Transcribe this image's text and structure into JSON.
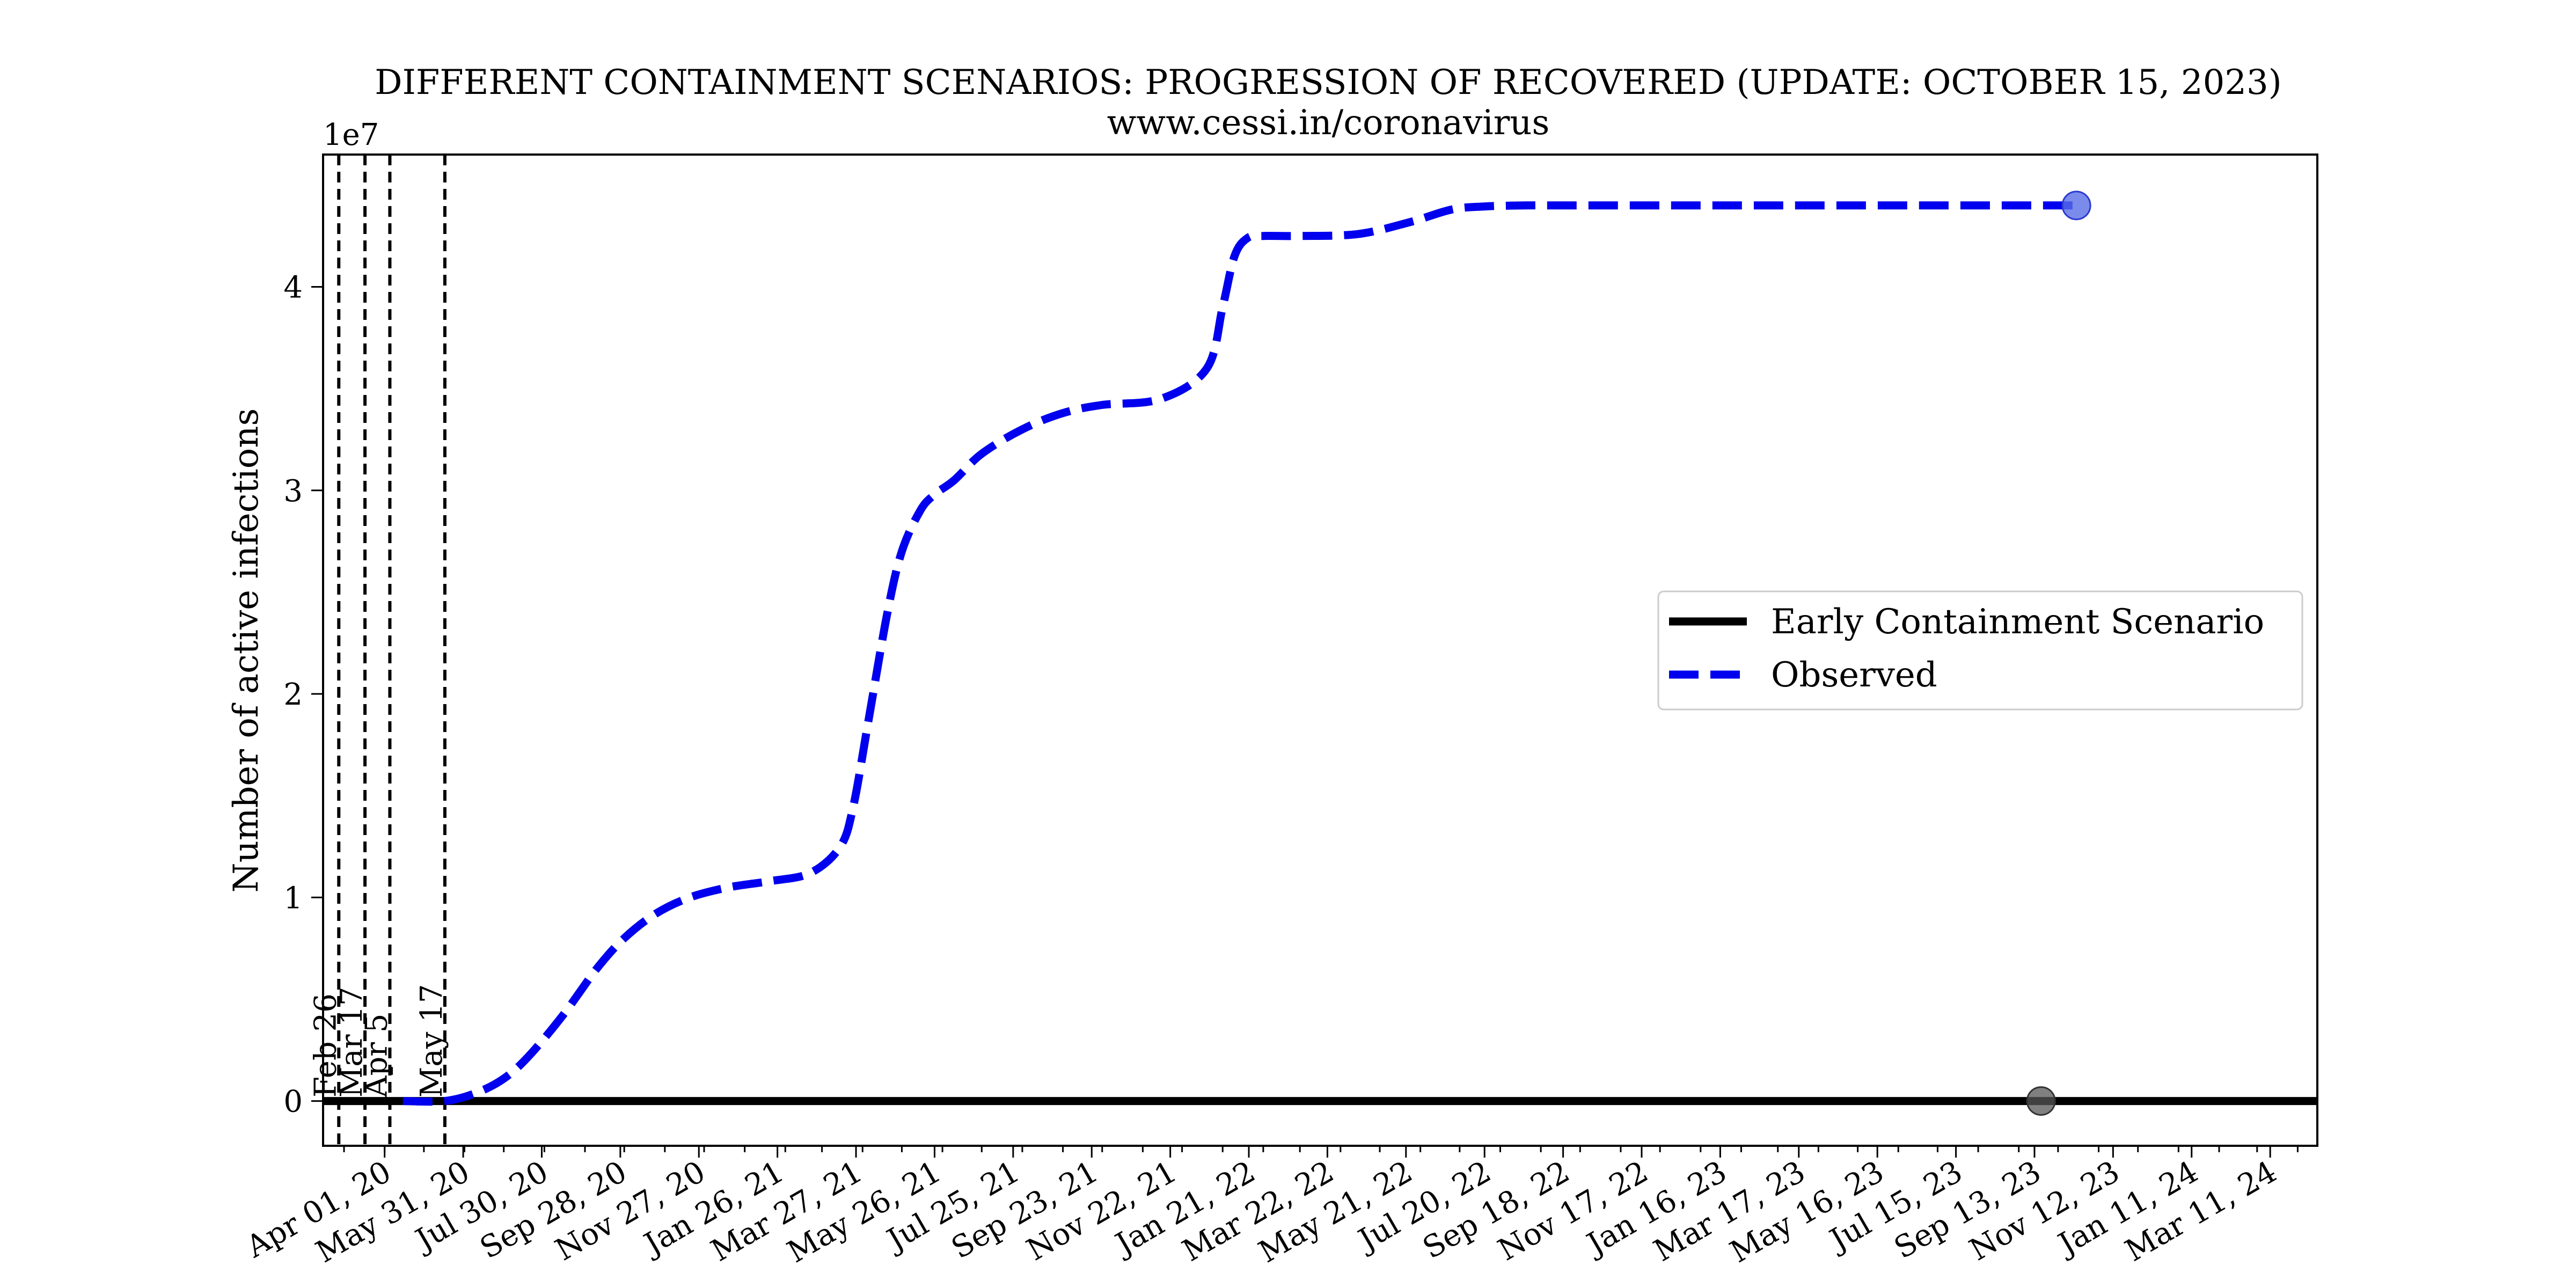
{
  "chart_data": {
    "type": "line",
    "title": "DIFFERENT CONTAINMENT SCENARIOS: PROGRESSION OF RECOVERED (UPDATE: OCTOBER 15, 2023)",
    "subtitle": "www.cessi.in/coronavirus",
    "ylabel": "Number of active infections",
    "xlabel": "",
    "y_scale_note": "1e7",
    "x_start": "2020-02-14",
    "xlim": [
      "2020-02-14",
      "2024-04-16"
    ],
    "ylim": [
      -2200000,
      46500000
    ],
    "y_ticks": [
      0,
      10000000,
      20000000,
      30000000,
      40000000
    ],
    "y_tick_labels": [
      "0",
      "1",
      "2",
      "3",
      "4"
    ],
    "x_ticks": [
      "2020-04-01",
      "2020-05-31",
      "2020-07-30",
      "2020-09-28",
      "2020-11-27",
      "2021-01-26",
      "2021-03-27",
      "2021-05-26",
      "2021-07-25",
      "2021-09-23",
      "2021-11-22",
      "2022-01-21",
      "2022-03-22",
      "2022-05-21",
      "2022-07-20",
      "2022-09-18",
      "2022-11-17",
      "2023-01-16",
      "2023-03-17",
      "2023-05-16",
      "2023-07-15",
      "2023-09-13",
      "2023-11-12",
      "2024-01-11",
      "2024-03-11"
    ],
    "x_tick_labels": [
      "Apr 01, 20",
      "May 31, 20",
      "Jul 30, 20",
      "Sep 28, 20",
      "Nov 27, 20",
      "Jan 26, 21",
      "Mar 27, 21",
      "May 26, 21",
      "Jul 25, 21",
      "Sep 23, 21",
      "Nov 22, 21",
      "Jan 21, 22",
      "Mar 22, 22",
      "May 21, 22",
      "Jul 20, 22",
      "Sep 18, 22",
      "Nov 17, 22",
      "Jan 16, 23",
      "Mar 17, 23",
      "May 16, 23",
      "Jul 15, 23",
      "Sep 13, 23",
      "Nov 12, 23",
      "Jan 11, 24",
      "Mar 11, 24"
    ],
    "events": [
      {
        "date": "2020-02-26",
        "label": "Feb 26"
      },
      {
        "date": "2020-03-17",
        "label": "Mar 17"
      },
      {
        "date": "2020-04-05",
        "label": "Apr 5"
      },
      {
        "date": "2020-05-17",
        "label": "May 17"
      }
    ],
    "series": [
      {
        "name": "Early Containment Scenario",
        "style": "solid",
        "color": "#000000",
        "x": [
          "2020-02-14",
          "2024-04-16"
        ],
        "y": [
          0,
          0
        ],
        "marker": {
          "x": "2023-09-18",
          "y": 0,
          "color": "#555555"
        }
      },
      {
        "name": "Observed",
        "style": "dashed",
        "color": "#0000ee",
        "x": [
          "2020-04-15",
          "2020-05-17",
          "2020-06-10",
          "2020-07-01",
          "2020-07-20",
          "2020-08-15",
          "2020-09-10",
          "2020-10-01",
          "2020-10-25",
          "2020-11-20",
          "2020-12-20",
          "2021-01-20",
          "2021-02-20",
          "2021-03-15",
          "2021-03-25",
          "2021-04-05",
          "2021-04-20",
          "2021-05-01",
          "2021-05-15",
          "2021-05-26",
          "2021-06-10",
          "2021-07-01",
          "2021-08-01",
          "2021-09-01",
          "2021-10-01",
          "2021-11-15",
          "2021-12-20",
          "2022-01-01",
          "2022-01-10",
          "2022-01-20",
          "2022-02-01",
          "2022-03-01",
          "2022-04-15",
          "2022-05-25",
          "2022-06-25",
          "2022-07-20",
          "2022-08-20",
          "2022-09-20",
          "2022-12-01",
          "2023-03-01",
          "2023-06-01",
          "2023-09-01",
          "2023-10-15"
        ],
        "y": [
          0,
          0,
          400000,
          1100000,
          2200000,
          4200000,
          6500000,
          8000000,
          9200000,
          10000000,
          10500000,
          10800000,
          11200000,
          12500000,
          14500000,
          18500000,
          24000000,
          27000000,
          29000000,
          29800000,
          30500000,
          31800000,
          33000000,
          33800000,
          34200000,
          34500000,
          36000000,
          39000000,
          41500000,
          42400000,
          42500000,
          42500000,
          42600000,
          43200000,
          43800000,
          43950000,
          44000000,
          44000000,
          44000000,
          44000000,
          44000000,
          44000000,
          44000000
        ],
        "marker": {
          "x": "2023-10-15",
          "y": 44000000,
          "color": "#5a6ee6"
        }
      }
    ],
    "legend_position": "center-right",
    "grid": false
  }
}
